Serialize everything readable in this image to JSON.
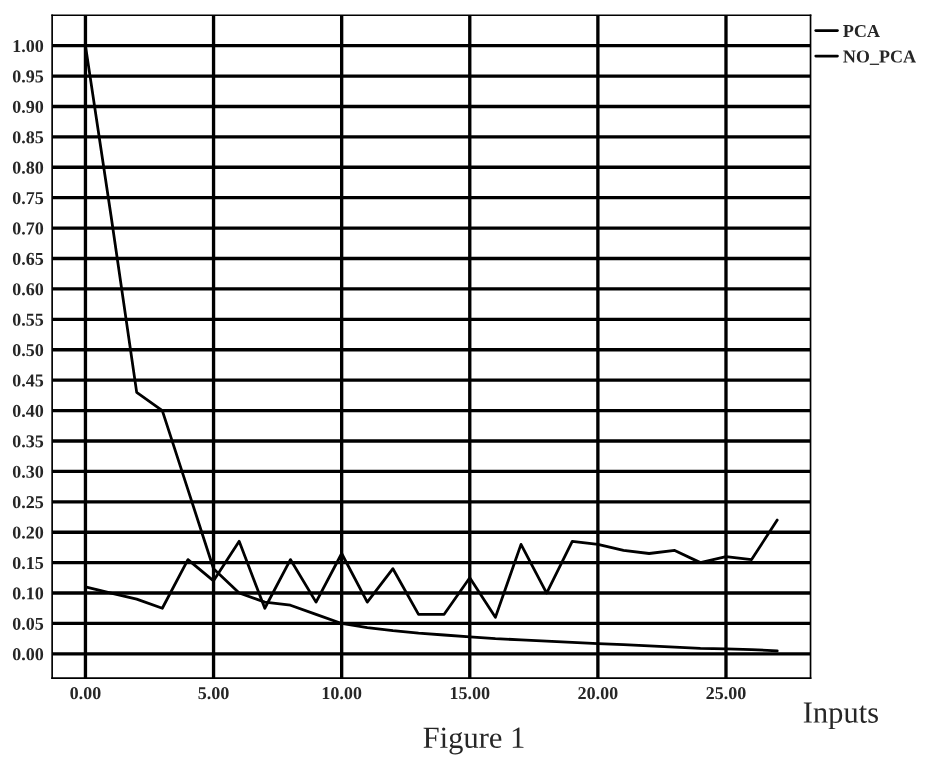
{
  "chart_data": {
    "type": "line",
    "xlabel": "Inputs",
    "annotations": [
      "Figure 1"
    ],
    "x": [
      0,
      1,
      2,
      3,
      4,
      5,
      6,
      7,
      8,
      9,
      10,
      11,
      12,
      13,
      14,
      15,
      16,
      17,
      18,
      19,
      20,
      21,
      22,
      23,
      24,
      25,
      26,
      27
    ],
    "series": [
      {
        "name": "PCA",
        "color": "#000000",
        "line_style": "solid",
        "values": [
          1.0,
          0.72,
          0.43,
          0.4,
          0.27,
          0.14,
          0.1,
          0.085,
          0.08,
          0.065,
          0.05,
          0.043,
          0.038,
          0.034,
          0.031,
          0.028,
          0.025,
          0.023,
          0.021,
          0.019,
          0.017,
          0.015,
          0.013,
          0.011,
          0.009,
          0.008,
          0.007,
          0.005
        ]
      },
      {
        "name": "NO_PCA",
        "color": "#000000",
        "line_style": "solid",
        "values": [
          0.11,
          0.1,
          0.09,
          0.075,
          0.155,
          0.12,
          0.185,
          0.075,
          0.155,
          0.085,
          0.165,
          0.085,
          0.14,
          0.065,
          0.065,
          0.125,
          0.06,
          0.18,
          0.1,
          0.185,
          0.18,
          0.17,
          0.165,
          0.17,
          0.15,
          0.16,
          0.155,
          0.22
        ]
      }
    ],
    "xlim": [
      -1.3,
      28.3
    ],
    "ylim": [
      -0.04,
      1.05
    ],
    "xticks": [
      {
        "value": 0,
        "label": "0.00"
      },
      {
        "value": 5,
        "label": "5.00"
      },
      {
        "value": 10,
        "label": "10.00"
      },
      {
        "value": 15,
        "label": "15.00"
      },
      {
        "value": 20,
        "label": "20.00"
      },
      {
        "value": 25,
        "label": "25.00"
      }
    ],
    "yticks": [
      {
        "value": 0,
        "label": "0.00"
      },
      {
        "value": 0.05,
        "label": "0.05"
      },
      {
        "value": 0.1,
        "label": "0.10"
      },
      {
        "value": 0.15,
        "label": "0.15"
      },
      {
        "value": 0.2,
        "label": "0.20"
      },
      {
        "value": 0.25,
        "label": "0.25"
      },
      {
        "value": 0.3,
        "label": "0.30"
      },
      {
        "value": 0.35,
        "label": "0.35"
      },
      {
        "value": 0.4,
        "label": "0.40"
      },
      {
        "value": 0.45,
        "label": "0.45"
      },
      {
        "value": 0.5,
        "label": "0.50"
      },
      {
        "value": 0.55,
        "label": "0.55"
      },
      {
        "value": 0.6,
        "label": "0.60"
      },
      {
        "value": 0.65,
        "label": "0.65"
      },
      {
        "value": 0.7,
        "label": "0.70"
      },
      {
        "value": 0.75,
        "label": "0.75"
      },
      {
        "value": 0.8,
        "label": "0.80"
      },
      {
        "value": 0.85,
        "label": "0.85"
      },
      {
        "value": 0.9,
        "label": "0.90"
      },
      {
        "value": 0.95,
        "label": "0.95"
      },
      {
        "value": 1.0,
        "label": "1.00"
      }
    ],
    "grid": true,
    "legend": "top right",
    "marker": "none"
  }
}
